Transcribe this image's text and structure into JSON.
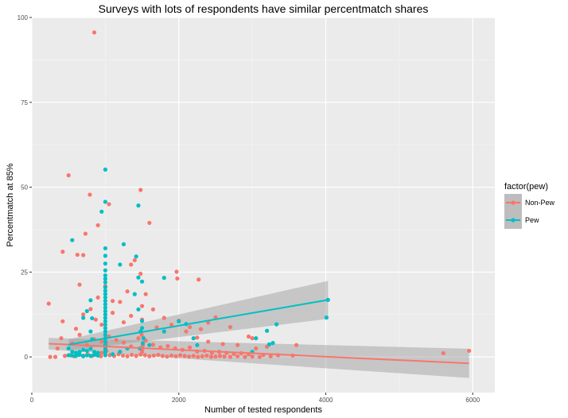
{
  "chart_data": {
    "type": "scatter",
    "title": "Surveys with lots of respondents have similar percentmatch shares",
    "xlabel": "Number of tested respondents",
    "ylabel": "Percentmatch at 85%",
    "xlim": [
      0,
      6300
    ],
    "ylim": [
      -10.5,
      100
    ],
    "x_ticks": [
      0,
      2000,
      4000,
      6000
    ],
    "x_tick_labels": [
      "0",
      "2000",
      "4000",
      "6000"
    ],
    "y_ticks": [
      0,
      25,
      50,
      75,
      100
    ],
    "y_tick_labels": [
      "0",
      "25",
      "50",
      "75",
      "100"
    ],
    "grid": true,
    "legend": {
      "title": "factor(pew)",
      "placement": "right",
      "entries": [
        "Non-Pew",
        "Pew"
      ]
    },
    "colors": {
      "Non-Pew": "#F8766D",
      "Pew": "#00BFC4",
      "panel": "#EBEBEB",
      "ribbon": "#999999"
    },
    "series": [
      {
        "name": "Non-Pew",
        "points": [
          [
            850,
            95.6
          ],
          [
            500,
            53.5
          ],
          [
            790,
            47.8
          ],
          [
            1050,
            45
          ],
          [
            1480,
            49.2
          ],
          [
            1600,
            39.5
          ],
          [
            900,
            38.8
          ],
          [
            730,
            36.3
          ],
          [
            420,
            31
          ],
          [
            620,
            30.1
          ],
          [
            700,
            30
          ],
          [
            1400,
            28.5
          ],
          [
            1350,
            27.2
          ],
          [
            1480,
            24.5
          ],
          [
            1970,
            25.1
          ],
          [
            2270,
            22.8
          ],
          [
            1980,
            23.1
          ],
          [
            650,
            21.3
          ],
          [
            1000,
            20.9
          ],
          [
            1300,
            19.3
          ],
          [
            1550,
            18.5
          ],
          [
            230,
            15.7
          ],
          [
            900,
            17.5
          ],
          [
            1100,
            16.5
          ],
          [
            1200,
            16.2
          ],
          [
            1500,
            15
          ],
          [
            1650,
            14
          ],
          [
            1800,
            11.5
          ],
          [
            2000,
            10.7
          ],
          [
            2150,
            8.8
          ],
          [
            2300,
            8.2
          ],
          [
            2400,
            10.1
          ],
          [
            2500,
            11.7
          ],
          [
            2700,
            8.8
          ],
          [
            2950,
            6
          ],
          [
            3000,
            5.5
          ],
          [
            3600,
            3.5
          ],
          [
            3200,
            3
          ],
          [
            420,
            10.5
          ],
          [
            600,
            8.3
          ],
          [
            700,
            12.5
          ],
          [
            800,
            14.1
          ],
          [
            870,
            11
          ],
          [
            950,
            9.5
          ],
          [
            1100,
            13
          ],
          [
            1250,
            10.2
          ],
          [
            1350,
            12.1
          ],
          [
            1500,
            11
          ],
          [
            1700,
            8.7
          ],
          [
            1900,
            9.5
          ],
          [
            2100,
            7.5
          ],
          [
            2250,
            5.7
          ],
          [
            2400,
            4.5
          ],
          [
            2600,
            3.8
          ],
          [
            2800,
            3.5
          ],
          [
            3050,
            2.5
          ],
          [
            350,
            2.5
          ],
          [
            400,
            5.5
          ],
          [
            550,
            4
          ],
          [
            650,
            6.5
          ],
          [
            750,
            3.5
          ],
          [
            850,
            5.2
          ],
          [
            950,
            4.5
          ],
          [
            1050,
            6
          ],
          [
            1150,
            5
          ],
          [
            1250,
            4.2
          ],
          [
            1350,
            3.1
          ],
          [
            1450,
            5.5
          ],
          [
            1550,
            4.8
          ],
          [
            1650,
            3.6
          ],
          [
            1750,
            2.8
          ],
          [
            1850,
            3.2
          ],
          [
            1950,
            2.5
          ],
          [
            2050,
            2.1
          ],
          [
            2150,
            2.8
          ],
          [
            2250,
            1.6
          ],
          [
            2350,
            1.8
          ],
          [
            2450,
            1.2
          ],
          [
            2550,
            1.5
          ],
          [
            2650,
            1.2
          ],
          [
            2750,
            0.9
          ],
          [
            2850,
            1.1
          ],
          [
            2950,
            0.8
          ],
          [
            3150,
            0.6
          ],
          [
            3350,
            0.5
          ],
          [
            3550,
            0.4
          ],
          [
            250,
            0
          ],
          [
            320,
            0
          ],
          [
            450,
            0.3
          ],
          [
            520,
            0.5
          ],
          [
            580,
            0.2
          ],
          [
            640,
            0.6
          ],
          [
            700,
            0.4
          ],
          [
            760,
            0.8
          ],
          [
            820,
            0.3
          ],
          [
            880,
            0.6
          ],
          [
            940,
            0.2
          ],
          [
            1000,
            0.7
          ],
          [
            1060,
            0.5
          ],
          [
            1120,
            0.3
          ],
          [
            1180,
            0.8
          ],
          [
            1240,
            0.4
          ],
          [
            1300,
            0.2
          ],
          [
            1360,
            0.6
          ],
          [
            1420,
            0.3
          ],
          [
            1480,
            0.7
          ],
          [
            1540,
            0.5
          ],
          [
            1600,
            0.2
          ],
          [
            1660,
            0.4
          ],
          [
            1720,
            0.6
          ],
          [
            1780,
            0.3
          ],
          [
            1840,
            0.1
          ],
          [
            1900,
            0.4
          ],
          [
            1960,
            0.2
          ],
          [
            2020,
            0.5
          ],
          [
            2080,
            0.3
          ],
          [
            2140,
            0.1
          ],
          [
            2200,
            0.3
          ],
          [
            2260,
            0
          ],
          [
            2320,
            0.2
          ],
          [
            2380,
            0.4
          ],
          [
            2440,
            0
          ],
          [
            2500,
            0.1
          ],
          [
            2560,
            0.3
          ],
          [
            2620,
            0.1
          ],
          [
            2700,
            0
          ],
          [
            2800,
            0.2
          ],
          [
            2900,
            0
          ],
          [
            3000,
            0.1
          ],
          [
            3100,
            0
          ],
          [
            3250,
            0.2
          ],
          [
            950,
            1.2
          ],
          [
            1000,
            2.1
          ],
          [
            1005,
            3.2
          ],
          [
            1010,
            4.1
          ],
          [
            1015,
            1.8
          ],
          [
            1500,
            1.5
          ],
          [
            1505,
            2.4
          ],
          [
            1510,
            3.4
          ],
          [
            1495,
            6.5
          ],
          [
            5600,
            1.1
          ],
          [
            5950,
            1.8
          ]
        ]
      },
      {
        "name": "Pew",
        "points": [
          [
            1000,
            55.2
          ],
          [
            1000,
            45.7
          ],
          [
            950,
            42.8
          ],
          [
            1450,
            44.6
          ],
          [
            550,
            34.4
          ],
          [
            1250,
            33.2
          ],
          [
            1000,
            32
          ],
          [
            1000,
            29.8
          ],
          [
            1000,
            27.5
          ],
          [
            1000,
            25.5
          ],
          [
            1000,
            24
          ],
          [
            1000,
            23
          ],
          [
            1000,
            22
          ],
          [
            1000,
            20.5
          ],
          [
            1000,
            19.5
          ],
          [
            1000,
            18.5
          ],
          [
            1000,
            17.5
          ],
          [
            1000,
            16.5
          ],
          [
            1000,
            15.5
          ],
          [
            1000,
            14.5
          ],
          [
            1000,
            13.5
          ],
          [
            1000,
            12.5
          ],
          [
            1000,
            11.5
          ],
          [
            1000,
            10.5
          ],
          [
            1000,
            9.5
          ],
          [
            1000,
            8.5
          ],
          [
            1000,
            7.5
          ],
          [
            1000,
            6.5
          ],
          [
            1000,
            5.5
          ],
          [
            1000,
            4.5
          ],
          [
            1000,
            3.5
          ],
          [
            1000,
            2.5
          ],
          [
            1000,
            1.5
          ],
          [
            1000,
            0.5
          ],
          [
            1200,
            27.2
          ],
          [
            1420,
            29.6
          ],
          [
            1450,
            23.4
          ],
          [
            1400,
            18.5
          ],
          [
            1500,
            22.2
          ],
          [
            1450,
            14
          ],
          [
            1500,
            10.6
          ],
          [
            1500,
            8.5
          ],
          [
            1480,
            7.5
          ],
          [
            1520,
            5.5
          ],
          [
            1510,
            4
          ],
          [
            1470,
            2.5
          ],
          [
            1800,
            23.3
          ],
          [
            700,
            11.5
          ],
          [
            750,
            13.5
          ],
          [
            800,
            16.7
          ],
          [
            820,
            11.4
          ],
          [
            800,
            7.5
          ],
          [
            820,
            5.2
          ],
          [
            500,
            2.5
          ],
          [
            550,
            1.5
          ],
          [
            600,
            1.2
          ],
          [
            650,
            1.5
          ],
          [
            700,
            2.1
          ],
          [
            750,
            1.8
          ],
          [
            800,
            2.4
          ],
          [
            850,
            1.5
          ],
          [
            900,
            1.2
          ],
          [
            500,
            0.5
          ],
          [
            550,
            0.4
          ],
          [
            600,
            0.3
          ],
          [
            650,
            0.6
          ],
          [
            700,
            0.2
          ],
          [
            750,
            0.5
          ],
          [
            800,
            0.3
          ],
          [
            850,
            0.6
          ],
          [
            900,
            0.4
          ],
          [
            1100,
            0.8
          ],
          [
            1200,
            1.5
          ],
          [
            1300,
            2.5
          ],
          [
            1600,
            3.5
          ],
          [
            1800,
            7.5
          ],
          [
            2000,
            10.5
          ],
          [
            2100,
            9.7
          ],
          [
            2200,
            5.5
          ],
          [
            2250,
            3.5
          ],
          [
            3000,
            1.5
          ],
          [
            3050,
            5.5
          ],
          [
            3200,
            7.7
          ],
          [
            3230,
            3.7
          ],
          [
            3280,
            4.1
          ],
          [
            3330,
            9.6
          ],
          [
            4030,
            16.8
          ],
          [
            4010,
            11.6
          ]
        ]
      }
    ],
    "trend_lines": [
      {
        "series": "Non-Pew",
        "x": [
          230,
          5950
        ],
        "y": [
          3.9,
          -1.9
        ],
        "ci_upper": [
          5.6,
          2.4
        ],
        "ci_lower": [
          2.2,
          -6.2
        ]
      },
      {
        "series": "Pew",
        "x": [
          500,
          4030
        ],
        "y": [
          3.6,
          16.8
        ],
        "ci_upper": [
          5.2,
          22.4
        ],
        "ci_lower": [
          1.9,
          11.2
        ]
      }
    ]
  }
}
